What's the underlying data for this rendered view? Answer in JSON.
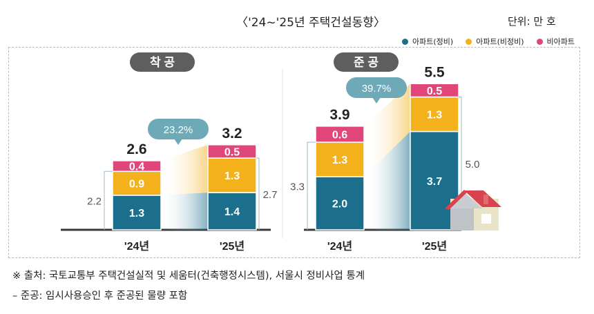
{
  "title": "〈'24~'25년 주택건설동향〉",
  "unit": "단위: 만 호",
  "legend": [
    {
      "label": "아파트(정비)",
      "color": "#1b6e8c"
    },
    {
      "label": "아파트(비정비)",
      "color": "#f3b21c"
    },
    {
      "label": "비아파트",
      "color": "#e0467a"
    }
  ],
  "colors": {
    "stack1": "#1b6e8c",
    "stack2": "#f3b21c",
    "stack3": "#e0467a",
    "pill": "#5e5e5e",
    "bubble": "#6ea9b8",
    "axis": "#3a3a3a",
    "guide": "#9fb8c8"
  },
  "footnotes": [
    "※ 출처: 국토교통부 주택건설실적 및 세움터(건축행정시스템), 서울시 정비사업 통계",
    " – 준공: 임시사용승인 후 준공된 물량 포함"
  ],
  "chart_data": [
    {
      "type": "bar",
      "stacked": true,
      "title": "착 공",
      "categories": [
        "'24년",
        "'25년"
      ],
      "series": [
        {
          "name": "아파트(정비)",
          "values": [
            1.3,
            1.4
          ]
        },
        {
          "name": "아파트(비정비)",
          "values": [
            0.9,
            1.3
          ]
        },
        {
          "name": "비아파트",
          "values": [
            0.4,
            0.5
          ]
        }
      ],
      "totals": [
        "2.6",
        "3.2"
      ],
      "side_labels": [
        "2.2",
        "2.7"
      ],
      "growth": "23.2%"
    },
    {
      "type": "bar",
      "stacked": true,
      "title": "준 공",
      "categories": [
        "'24년",
        "'25년"
      ],
      "series": [
        {
          "name": "아파트(정비)",
          "values": [
            2.0,
            3.7
          ]
        },
        {
          "name": "아파트(비정비)",
          "values": [
            1.3,
            1.3
          ]
        },
        {
          "name": "비아파트",
          "values": [
            0.6,
            0.5
          ]
        }
      ],
      "totals": [
        "3.9",
        "5.5"
      ],
      "side_labels": [
        "3.3",
        "5.0"
      ],
      "growth": "39.7%"
    }
  ]
}
